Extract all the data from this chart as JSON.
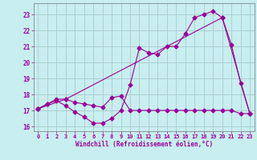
{
  "xlabel": "Windchill (Refroidissement éolien,°C)",
  "background_color": "#c8eef0",
  "line_color": "#990099",
  "grid_color": "#aacccc",
  "xlim": [
    -0.5,
    23.5
  ],
  "ylim": [
    15.7,
    23.7
  ],
  "yticks": [
    16,
    17,
    18,
    19,
    20,
    21,
    22,
    23
  ],
  "xticks": [
    0,
    1,
    2,
    3,
    4,
    5,
    6,
    7,
    8,
    9,
    10,
    11,
    12,
    13,
    14,
    15,
    16,
    17,
    18,
    19,
    20,
    21,
    22,
    23
  ],
  "line1_x": [
    0,
    1,
    2,
    3,
    4,
    5,
    6,
    7,
    8,
    9,
    10,
    11,
    12,
    13,
    14,
    15,
    16,
    17,
    18,
    19,
    20,
    21,
    22,
    23
  ],
  "line1_y": [
    17.1,
    17.4,
    17.6,
    17.3,
    16.9,
    16.6,
    16.2,
    16.2,
    16.5,
    17.0,
    18.6,
    20.9,
    20.6,
    20.5,
    21.0,
    21.0,
    21.8,
    22.8,
    23.0,
    23.2,
    22.8,
    21.1,
    18.7,
    16.8
  ],
  "line2_x": [
    0,
    1,
    2,
    3,
    4,
    5,
    6,
    7,
    8,
    9,
    10,
    11,
    12,
    13,
    14,
    15,
    16,
    17,
    18,
    19,
    20,
    21,
    22,
    23
  ],
  "line2_y": [
    17.1,
    17.4,
    17.7,
    17.7,
    17.5,
    17.4,
    17.3,
    17.2,
    17.8,
    17.9,
    17.0,
    17.0,
    17.0,
    17.0,
    17.0,
    17.0,
    17.0,
    17.0,
    17.0,
    17.0,
    17.0,
    17.0,
    16.8,
    16.8
  ],
  "line3_x": [
    0,
    3,
    20,
    23
  ],
  "line3_y": [
    17.1,
    17.7,
    22.8,
    16.8
  ]
}
